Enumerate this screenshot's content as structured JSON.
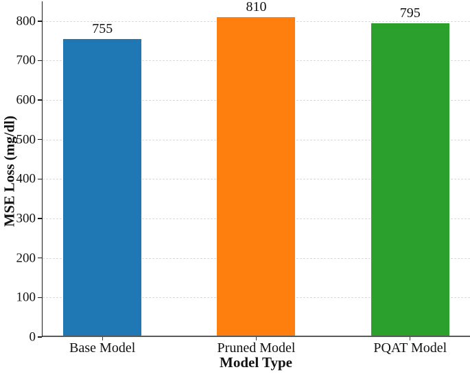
{
  "chart_data": {
    "type": "bar",
    "title": "",
    "categories": [
      "Base Model",
      "Pruned Model",
      "PQAT Model"
    ],
    "values": [
      755,
      810,
      795
    ],
    "value_labels": [
      "755",
      "810",
      "795"
    ],
    "bar_colors": [
      "#1f77b4",
      "#ff7f0e",
      "#2ca02c"
    ],
    "xlabel": "Model Type",
    "ylabel": "MSE Loss (mg/dl)",
    "ylim": [
      0,
      850
    ],
    "yticks": [
      0,
      100,
      200,
      300,
      400,
      500,
      600,
      700,
      800
    ],
    "grid": "horizontal-dashed",
    "gridline_color": "#d9d9d9",
    "axis_color": "#1a1a1a",
    "baseline_color": "#595959",
    "background": "#ffffff",
    "legend": "none"
  }
}
